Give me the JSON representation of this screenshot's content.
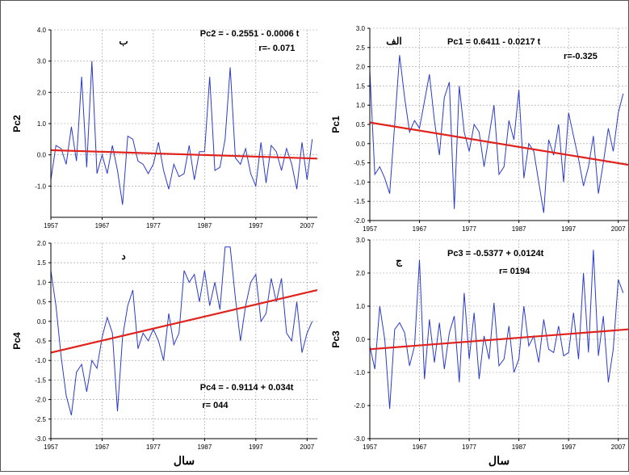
{
  "chart_data": [
    {
      "type": "line",
      "panel_label": "ب",
      "ylabel": "Pc2",
      "xlabel": "",
      "equation": "Pc2 = - 0.2551 - 0.0006 t",
      "r_text": "r=- 0.071",
      "xlim": [
        1957,
        2009
      ],
      "ylim": [
        -2.0,
        4.0
      ],
      "yticks": [
        "4.0",
        "3.0",
        "2.0",
        "1.0",
        "0.0",
        "-1.0"
      ],
      "ytick_values": [
        4.0,
        3.0,
        2.0,
        1.0,
        0.0,
        -1.0
      ],
      "xticks": [
        "1957",
        "1967",
        "1977",
        "1987",
        "1997",
        "2007"
      ],
      "xtick_values": [
        1957,
        1967,
        1977,
        1987,
        1997,
        2007
      ],
      "grid": true,
      "trend": {
        "x": [
          1957,
          2009
        ],
        "y": [
          0.15,
          -0.12
        ]
      },
      "series": [
        {
          "x": [
            1957,
            1958,
            1959,
            1960,
            1961,
            1962,
            1963,
            1964,
            1965,
            1966,
            1967,
            1968,
            1969,
            1970,
            1971,
            1972,
            1973,
            1974,
            1975,
            1976,
            1977,
            1978,
            1979,
            1980,
            1981,
            1982,
            1983,
            1984,
            1985,
            1986,
            1987,
            1988,
            1989,
            1990,
            1991,
            1992,
            1993,
            1994,
            1995,
            1996,
            1997,
            1998,
            1999,
            2000,
            2001,
            2002,
            2003,
            2004,
            2005,
            2006,
            2007,
            2008
          ],
          "y": [
            -0.8,
            0.3,
            0.2,
            -0.3,
            0.9,
            -0.2,
            2.5,
            -0.4,
            3.0,
            -0.6,
            0.0,
            -0.6,
            0.3,
            -0.5,
            -1.6,
            0.6,
            0.5,
            -0.2,
            -0.3,
            -0.6,
            -0.3,
            0.4,
            -0.5,
            -1.1,
            -0.3,
            -0.7,
            -0.6,
            0.3,
            -0.8,
            0.1,
            0.1,
            2.5,
            -0.5,
            -0.4,
            0.5,
            2.8,
            -0.1,
            -0.3,
            0.2,
            -0.6,
            -1.0,
            0.4,
            -0.9,
            0.3,
            0.1,
            -0.5,
            0.2,
            -0.3,
            -1.1,
            0.4,
            -0.8,
            0.5
          ]
        }
      ]
    },
    {
      "type": "line",
      "panel_label": "الف",
      "ylabel": "Pc1",
      "xlabel": "",
      "equation": "Pc1 = 0.6411 - 0.0217 t",
      "r_text": "r=-0.325",
      "xlim": [
        1957,
        2009
      ],
      "ylim": [
        -2.0,
        3.0
      ],
      "yticks": [
        "3.0",
        "2.5",
        "2.0",
        "1.5",
        "1.0",
        "0.5",
        "0.0",
        "-0.5",
        "-1.0",
        "-1.5",
        "-2.0"
      ],
      "ytick_values": [
        3.0,
        2.5,
        2.0,
        1.5,
        1.0,
        0.5,
        0.0,
        -0.5,
        -1.0,
        -1.5,
        -2.0
      ],
      "xticks": [
        "1957",
        "1967",
        "1977",
        "1987",
        "1997",
        "2007"
      ],
      "xtick_values": [
        1957,
        1967,
        1977,
        1987,
        1997,
        2007
      ],
      "grid": true,
      "trend": {
        "x": [
          1957,
          2009
        ],
        "y": [
          0.55,
          -0.55
        ]
      },
      "series": [
        {
          "x": [
            1957,
            1958,
            1959,
            1960,
            1961,
            1962,
            1963,
            1964,
            1965,
            1966,
            1967,
            1968,
            1969,
            1970,
            1971,
            1972,
            1973,
            1974,
            1975,
            1976,
            1977,
            1978,
            1979,
            1980,
            1981,
            1982,
            1983,
            1984,
            1985,
            1986,
            1987,
            1988,
            1989,
            1990,
            1991,
            1992,
            1993,
            1994,
            1995,
            1996,
            1997,
            1998,
            1999,
            2000,
            2001,
            2002,
            2003,
            2004,
            2005,
            2006,
            2007,
            2008
          ],
          "y": [
            1.9,
            -0.8,
            -0.6,
            -0.9,
            -1.3,
            0.5,
            2.3,
            1.2,
            0.3,
            0.6,
            0.4,
            1.1,
            1.8,
            0.6,
            -0.3,
            1.2,
            1.6,
            -1.7,
            1.5,
            0.3,
            -0.2,
            0.5,
            0.3,
            -0.6,
            0.2,
            1.0,
            -0.8,
            -0.6,
            0.6,
            0.1,
            1.4,
            -0.9,
            0.0,
            -0.2,
            -1.0,
            -1.8,
            0.1,
            -0.3,
            0.5,
            -1.0,
            0.8,
            0.2,
            -0.4,
            -1.1,
            -0.6,
            0.2,
            -1.3,
            -0.5,
            0.4,
            -0.2,
            0.8,
            1.3
          ]
        }
      ]
    },
    {
      "type": "line",
      "panel_label": "د",
      "ylabel": "Pc4",
      "xlabel": "سال",
      "equation": "Pc4 = - 0.9114 + 0.034t",
      "r_text": "r= 044",
      "xlim": [
        1957,
        2009
      ],
      "ylim": [
        -3.0,
        2.0
      ],
      "yticks": [
        "2.0",
        "1.5",
        "1.0",
        "0.5",
        "0.0",
        "-0.5",
        "-1.0",
        "-1.5",
        "-2.0",
        "-2.5",
        "-3.0"
      ],
      "ytick_values": [
        2.0,
        1.5,
        1.0,
        0.5,
        0.0,
        -0.5,
        -1.0,
        -1.5,
        -2.0,
        -2.5,
        -3.0
      ],
      "xticks": [
        "1957",
        "1967",
        "1977",
        "1987",
        "1997",
        "2007"
      ],
      "xtick_values": [
        1957,
        1967,
        1977,
        1987,
        1997,
        2007
      ],
      "grid": true,
      "trend": {
        "x": [
          1957,
          2009
        ],
        "y": [
          -0.8,
          0.8
        ]
      },
      "series": [
        {
          "x": [
            1957,
            1958,
            1959,
            1960,
            1961,
            1962,
            1963,
            1964,
            1965,
            1966,
            1967,
            1968,
            1969,
            1970,
            1971,
            1972,
            1973,
            1974,
            1975,
            1976,
            1977,
            1978,
            1979,
            1980,
            1981,
            1982,
            1983,
            1984,
            1985,
            1986,
            1987,
            1988,
            1989,
            1990,
            1991,
            1992,
            1993,
            1994,
            1995,
            1996,
            1997,
            1998,
            1999,
            2000,
            2001,
            2002,
            2003,
            2004,
            2005,
            2006,
            2007,
            2008
          ],
          "y": [
            1.3,
            0.4,
            -0.9,
            -1.9,
            -2.4,
            -1.3,
            -1.1,
            -1.8,
            -1.0,
            -1.2,
            -0.4,
            0.1,
            -0.3,
            -2.3,
            -0.4,
            0.4,
            0.8,
            -0.7,
            -0.3,
            -0.5,
            -0.2,
            -0.5,
            -1.0,
            0.2,
            -0.6,
            -0.3,
            1.3,
            1.0,
            1.2,
            0.5,
            1.3,
            0.4,
            1.0,
            0.3,
            1.9,
            1.9,
            0.6,
            -0.5,
            0.4,
            1.0,
            1.2,
            0.0,
            0.2,
            1.1,
            0.5,
            1.1,
            -0.3,
            -0.5,
            0.5,
            -0.8,
            -0.3,
            0.0
          ]
        }
      ]
    },
    {
      "type": "line",
      "panel_label": "ج",
      "ylabel": "Pc3",
      "xlabel": "سال",
      "equation": "Pc3 = -0.5377 + 0.0124t",
      "r_text": "r= 0194",
      "xlim": [
        1957,
        2009
      ],
      "ylim": [
        -3.0,
        3.0
      ],
      "yticks": [
        "3.0",
        "2.0",
        "1.0",
        "0.0",
        "-1.0",
        "-2.0",
        "-3.0"
      ],
      "ytick_values": [
        3.0,
        2.0,
        1.0,
        0.0,
        -1.0,
        -2.0,
        -3.0
      ],
      "xticks": [
        "1957",
        "1967",
        "1977",
        "1987",
        "1997",
        "2007"
      ],
      "xtick_values": [
        1957,
        1967,
        1977,
        1987,
        1997,
        2007
      ],
      "grid": true,
      "trend": {
        "x": [
          1957,
          2009
        ],
        "y": [
          -0.3,
          0.3
        ]
      },
      "series": [
        {
          "x": [
            1957,
            1958,
            1959,
            1960,
            1961,
            1962,
            1963,
            1964,
            1965,
            1966,
            1967,
            1968,
            1969,
            1970,
            1971,
            1972,
            1973,
            1974,
            1975,
            1976,
            1977,
            1978,
            1979,
            1980,
            1981,
            1982,
            1983,
            1984,
            1985,
            1986,
            1987,
            1988,
            1989,
            1990,
            1991,
            1992,
            1993,
            1994,
            1995,
            1996,
            1997,
            1998,
            1999,
            2000,
            2001,
            2002,
            2003,
            2004,
            2005,
            2006,
            2007,
            2008
          ],
          "y": [
            -0.2,
            -0.9,
            1.0,
            0.0,
            -2.1,
            0.3,
            0.5,
            0.2,
            -0.8,
            -0.2,
            2.4,
            -1.2,
            0.6,
            -0.7,
            0.5,
            -0.9,
            0.2,
            0.7,
            -1.3,
            1.4,
            -0.6,
            0.8,
            -1.2,
            0.1,
            -0.6,
            1.1,
            -0.8,
            -0.6,
            0.4,
            -1.0,
            -0.6,
            1.0,
            -0.2,
            0.1,
            -0.7,
            0.6,
            -0.3,
            -0.4,
            0.4,
            -0.5,
            -0.4,
            0.8,
            -0.6,
            2.0,
            -0.4,
            2.7,
            -0.5,
            0.7,
            -1.3,
            -0.3,
            1.8,
            1.4
          ]
        }
      ]
    }
  ]
}
